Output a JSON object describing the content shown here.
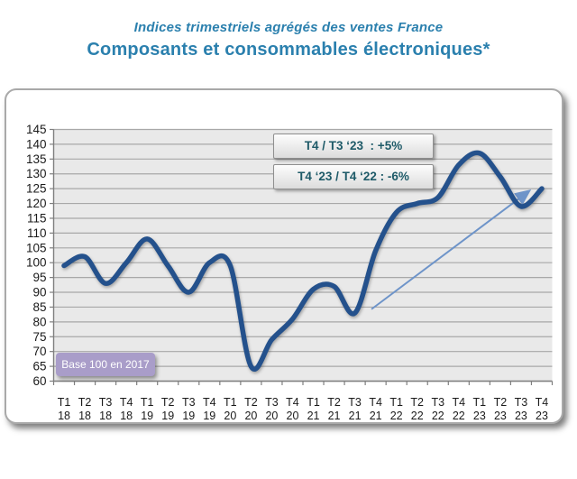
{
  "header": {
    "title_line1": "Indices trimestriels agrégés des ventes France",
    "title_line2": "Composants et consommables électroniques*"
  },
  "chart_data": {
    "type": "line",
    "title": "Indices trimestriels agrégés des ventes France — Composants et consommables électroniques*",
    "categories": [
      [
        "T1",
        "18"
      ],
      [
        "T2",
        "18"
      ],
      [
        "T3",
        "18"
      ],
      [
        "T4",
        "18"
      ],
      [
        "T1",
        "19"
      ],
      [
        "T2",
        "19"
      ],
      [
        "T3",
        "19"
      ],
      [
        "T4",
        "19"
      ],
      [
        "T1",
        "20"
      ],
      [
        "T2",
        "20"
      ],
      [
        "T3",
        "20"
      ],
      [
        "T4",
        "20"
      ],
      [
        "T1",
        "21"
      ],
      [
        "T2",
        "21"
      ],
      [
        "T3",
        "21"
      ],
      [
        "T4",
        "21"
      ],
      [
        "T1",
        "22"
      ],
      [
        "T2",
        "22"
      ],
      [
        "T3",
        "22"
      ],
      [
        "T4",
        "22"
      ],
      [
        "T1",
        "23"
      ],
      [
        "T2",
        "23"
      ],
      [
        "T3",
        "23"
      ],
      [
        "T4",
        "23"
      ]
    ],
    "values": [
      99,
      102,
      93,
      100,
      108,
      99,
      90,
      100,
      99,
      65,
      74,
      81,
      91,
      92,
      83,
      104,
      117,
      120,
      122,
      133,
      137,
      129,
      119,
      125
    ],
    "ylim": [
      60,
      145
    ],
    "ytick_step": 5,
    "grid": "horizontal",
    "legend": "none",
    "base_label": "Base 100 en 2017",
    "annotations": [
      "T4 / T3 ‘23  : +5%",
      "T4 ‘23 / T4 ‘22 : -6%"
    ],
    "trend_arrow": {
      "from": {
        "index": 14.8,
        "value": 84.3
      },
      "to": {
        "index": 22.35,
        "value": 124
      }
    },
    "colors": {
      "series": "#24518c",
      "arrow": "#6e94c9",
      "title": "#2b80ae",
      "annotation_text": "#1e5a68",
      "plot_bg": "#e9e9e9",
      "gridline": "#a8a8a8",
      "axis": "#7f7f7f",
      "tick_label": "#1a1a1a",
      "base_box_bg": "#a99dc9"
    }
  }
}
